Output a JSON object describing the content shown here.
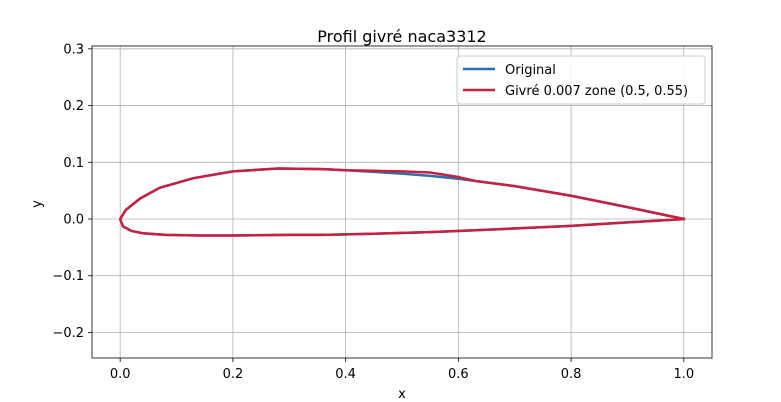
{
  "chart_data": {
    "type": "line",
    "title": "Profil givré naca3312",
    "xlabel": "x",
    "ylabel": "y",
    "xlim": [
      -0.05,
      1.05
    ],
    "ylim": [
      -0.245,
      0.305
    ],
    "xticks": [
      0.0,
      0.2,
      0.4,
      0.6,
      0.8,
      1.0
    ],
    "xtick_labels": [
      "0.0",
      "0.2",
      "0.4",
      "0.6",
      "0.8",
      "1.0"
    ],
    "yticks": [
      -0.2,
      -0.1,
      0.0,
      0.1,
      0.2,
      0.3
    ],
    "ytick_labels": [
      "−0.2",
      "−0.1",
      "0.0",
      "0.1",
      "0.2",
      "0.3"
    ],
    "grid": true,
    "legend": "top-right",
    "series": [
      {
        "name": "Original",
        "color": "#2b6fb0",
        "x": [
          1.0,
          0.9,
          0.8,
          0.7,
          0.6,
          0.55,
          0.5,
          0.45,
          0.4,
          0.36,
          0.28,
          0.2,
          0.13,
          0.07,
          0.035,
          0.01,
          0.0,
          0.005,
          0.02,
          0.04,
          0.08,
          0.14,
          0.2,
          0.3,
          0.36,
          0.45,
          0.55,
          0.65,
          0.8,
          0.9,
          1.0
        ],
        "y": [
          0.0,
          0.021,
          0.041,
          0.058,
          0.071,
          0.076,
          0.08,
          0.083,
          0.086,
          0.088,
          0.089,
          0.084,
          0.072,
          0.055,
          0.036,
          0.016,
          0.0,
          -0.013,
          -0.021,
          -0.025,
          -0.028,
          -0.029,
          -0.029,
          -0.028,
          -0.028,
          -0.026,
          -0.023,
          -0.019,
          -0.012,
          -0.006,
          0.0
        ]
      },
      {
        "name": "Givré 0.007 zone (0.5, 0.55)",
        "color": "#c8213f",
        "x": [
          1.0,
          0.9,
          0.8,
          0.7,
          0.63,
          0.6,
          0.55,
          0.5,
          0.45,
          0.4,
          0.36,
          0.28,
          0.2,
          0.13,
          0.07,
          0.035,
          0.01,
          0.0,
          0.005,
          0.02,
          0.04,
          0.08,
          0.14,
          0.2,
          0.3,
          0.36,
          0.45,
          0.55,
          0.65,
          0.8,
          0.9,
          1.0
        ],
        "y": [
          0.0,
          0.021,
          0.041,
          0.058,
          0.067,
          0.074,
          0.082,
          0.084,
          0.085,
          0.086,
          0.088,
          0.089,
          0.084,
          0.072,
          0.055,
          0.036,
          0.016,
          0.0,
          -0.013,
          -0.021,
          -0.025,
          -0.028,
          -0.029,
          -0.029,
          -0.028,
          -0.028,
          -0.026,
          -0.023,
          -0.019,
          -0.012,
          -0.006,
          0.0
        ]
      }
    ]
  }
}
